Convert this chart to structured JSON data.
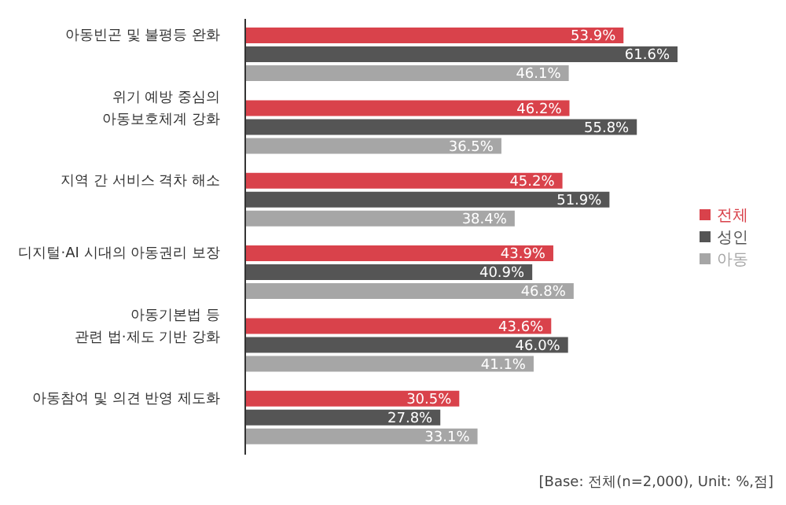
{
  "chart_data": {
    "type": "bar",
    "orientation": "horizontal",
    "categories": [
      "아동빈곤 및 불평등 완화",
      "위기 예방 중심의\n아동보호체계 강화",
      "지역 간 서비스 격차 해소",
      "디지털·AI 시대의 아동권리 보장",
      "아동기본법 등\n관련 법·제도 기반 강화",
      "아동참여 및 의견 반영 제도화"
    ],
    "series": [
      {
        "name": "전체",
        "color": "#d9424b",
        "values": [
          53.9,
          46.2,
          45.2,
          43.9,
          43.6,
          30.5
        ],
        "value_labels": [
          "53.9%",
          "46.2%",
          "45.2%",
          "43.9%",
          "43.6%",
          "30.5%"
        ]
      },
      {
        "name": "성인",
        "color": "#555555",
        "values": [
          61.6,
          55.8,
          51.9,
          40.9,
          46.0,
          27.8
        ],
        "value_labels": [
          "61.6%",
          "55.8%",
          "51.9%",
          "40.9%",
          "46.0%",
          "27.8%"
        ]
      },
      {
        "name": "아동",
        "color": "#a6a6a6",
        "values": [
          46.1,
          36.5,
          38.4,
          46.8,
          41.1,
          33.1
        ],
        "value_labels": [
          "46.1%",
          "36.5%",
          "38.4%",
          "46.8%",
          "41.1%",
          "33.1%"
        ]
      }
    ],
    "legend": "right",
    "annotations": [
      "[Base: 전체(n=2,000), Unit: %,점]"
    ]
  }
}
